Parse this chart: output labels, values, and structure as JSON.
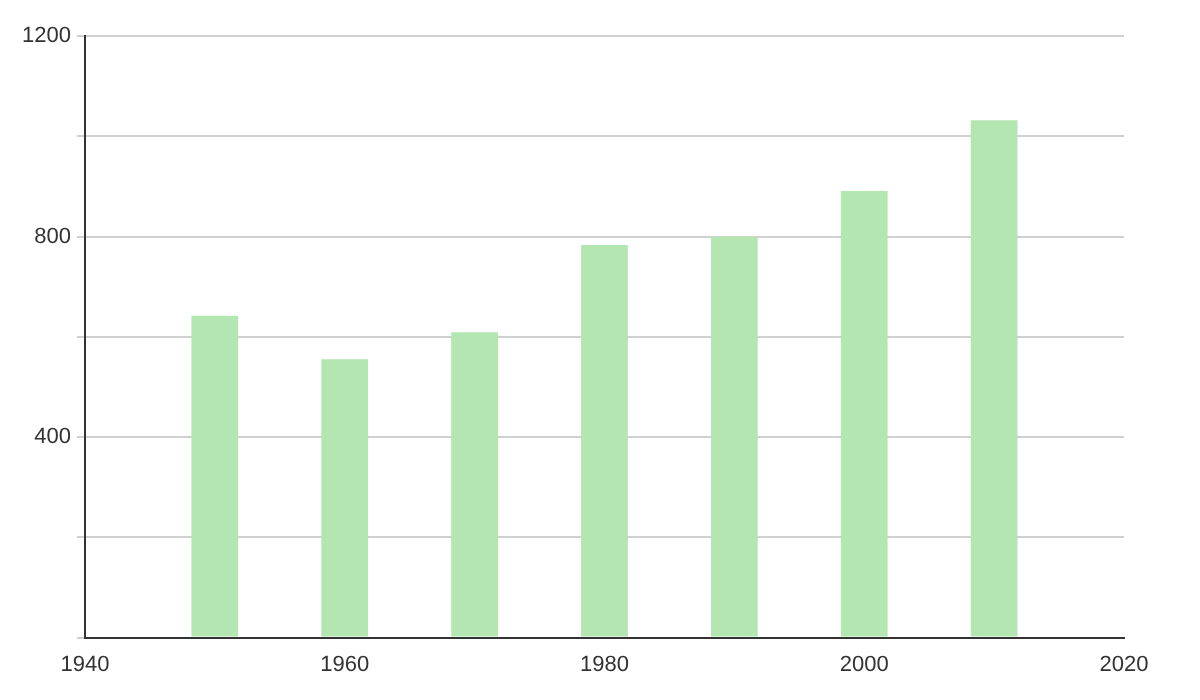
{
  "chart_data": {
    "type": "bar",
    "x": [
      1950,
      1960,
      1970,
      1980,
      1990,
      2000,
      2010
    ],
    "values": [
      642,
      555,
      609,
      783,
      800,
      891,
      1032
    ],
    "color": "#b3e6b0",
    "xlim": [
      1940,
      2020
    ],
    "xticks": [
      1940,
      1960,
      1980,
      2000,
      2020
    ],
    "ylim": [
      0,
      1200
    ],
    "yticks": [
      {
        "value": 0,
        "label": null
      },
      {
        "value": 200,
        "label": null
      },
      400,
      {
        "value": 600,
        "label": null
      },
      800,
      {
        "value": 1000,
        "label": null
      },
      1200
    ],
    "grid": "y"
  }
}
